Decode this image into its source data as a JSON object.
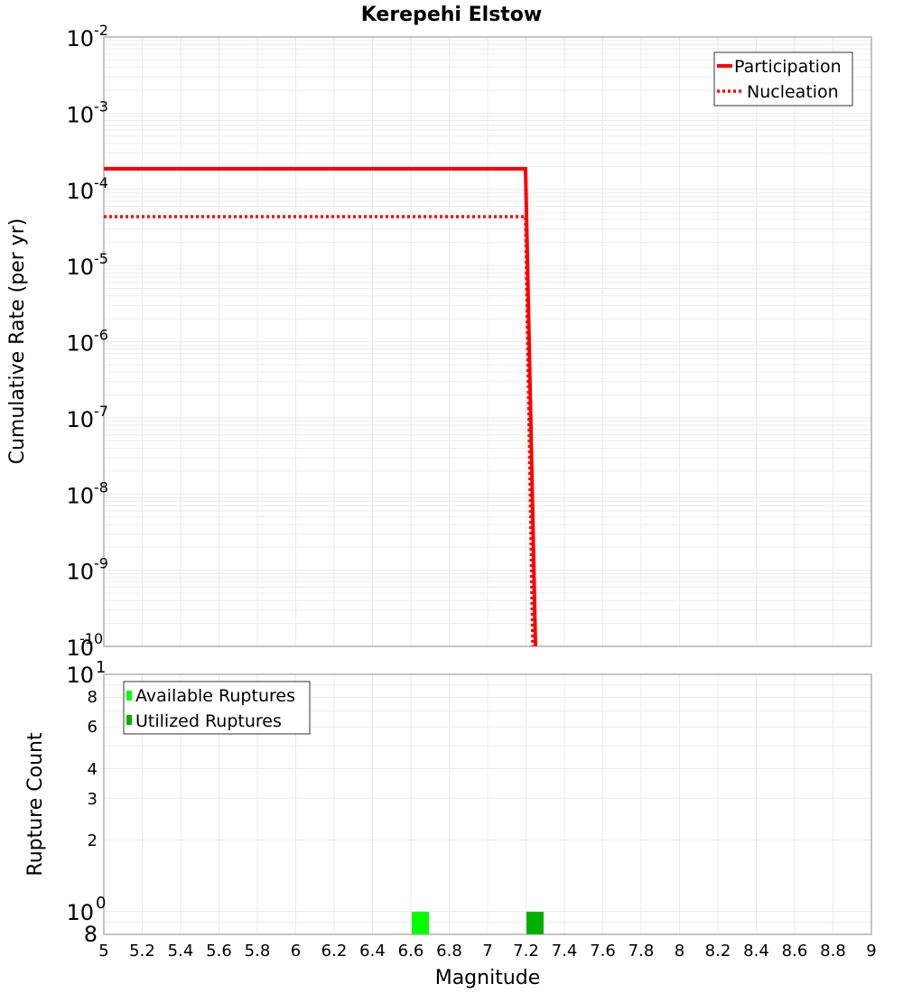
{
  "chart_data": [
    {
      "type": "line",
      "title": "Kerepehi Elstow",
      "xlabel": "Magnitude",
      "ylabel": "Cumulative Rate (per yr)",
      "yscale": "log",
      "xlim": [
        5,
        9
      ],
      "ylim": [
        1e-10,
        0.01
      ],
      "grid": true,
      "legend_position": "top-right",
      "y_ticks": [
        "10^-2",
        "10^-3",
        "10^-4",
        "10^-5",
        "10^-6",
        "10^-7",
        "10^-8",
        "10^-9",
        "10^-10"
      ],
      "series": [
        {
          "name": "Participation",
          "style": "solid",
          "color": "#ff0000",
          "x": [
            5.0,
            7.2,
            7.25
          ],
          "y": [
            0.000186,
            0.000186,
            1e-10
          ]
        },
        {
          "name": "Nucleation",
          "style": "dotted",
          "color": "#ff0000",
          "x": [
            5.0,
            7.2,
            7.25
          ],
          "y": [
            4.4e-05,
            4.4e-05,
            1e-10
          ]
        }
      ]
    },
    {
      "type": "bar",
      "title": "",
      "xlabel": "Magnitude",
      "ylabel": "Rupture Count",
      "yscale": "log",
      "xlim": [
        5,
        9
      ],
      "ylim": [
        0.8,
        10
      ],
      "grid": true,
      "legend_position": "top-left",
      "x_ticks": [
        "5",
        "5.2",
        "5.4",
        "5.6",
        "5.8",
        "6",
        "6.2",
        "6.4",
        "6.6",
        "6.8",
        "7",
        "7.2",
        "7.4",
        "7.6",
        "7.8",
        "8",
        "8.2",
        "8.4",
        "8.6",
        "8.8",
        "9"
      ],
      "y_ticks": [
        "8",
        "10^0",
        "2",
        "3",
        "4",
        "6",
        "8",
        "10^1"
      ],
      "series": [
        {
          "name": "Available Ruptures",
          "color": "#00ff00",
          "x": [
            6.65
          ],
          "values": [
            1
          ]
        },
        {
          "name": "Utilized Ruptures",
          "color": "#00b000",
          "x": [
            7.25
          ],
          "values": [
            1
          ]
        }
      ]
    }
  ],
  "labels": {
    "title": "Kerepehi Elstow",
    "top_ylabel": "Cumulative Rate (per yr)",
    "bottom_ylabel": "Rupture Count",
    "xlabel": "Magnitude",
    "legend_top": [
      "Participation",
      "Nucleation"
    ],
    "legend_bottom": [
      "Available Ruptures",
      "Utilized Ruptures"
    ],
    "x_ticks": [
      "5",
      "5.2",
      "5.4",
      "5.6",
      "5.8",
      "6",
      "6.2",
      "6.4",
      "6.6",
      "6.8",
      "7",
      "7.2",
      "7.4",
      "7.6",
      "7.8",
      "8",
      "8.2",
      "8.4",
      "8.6",
      "8.8",
      "9"
    ],
    "top_y_exp": [
      "-2",
      "-3",
      "-4",
      "-5",
      "-6",
      "-7",
      "-8",
      "-9",
      "-10"
    ],
    "bottom_minor": [
      "8",
      "6",
      "4",
      "3",
      "2"
    ],
    "bottom_exp_top": "1",
    "bottom_exp_bottom": "0",
    "bottom_low": "8"
  },
  "colors": {
    "line": "#ff0000",
    "available": "#00ff00",
    "utilized": "#00b000",
    "grid": "#ebebeb",
    "frame": "#b0b0b0"
  }
}
